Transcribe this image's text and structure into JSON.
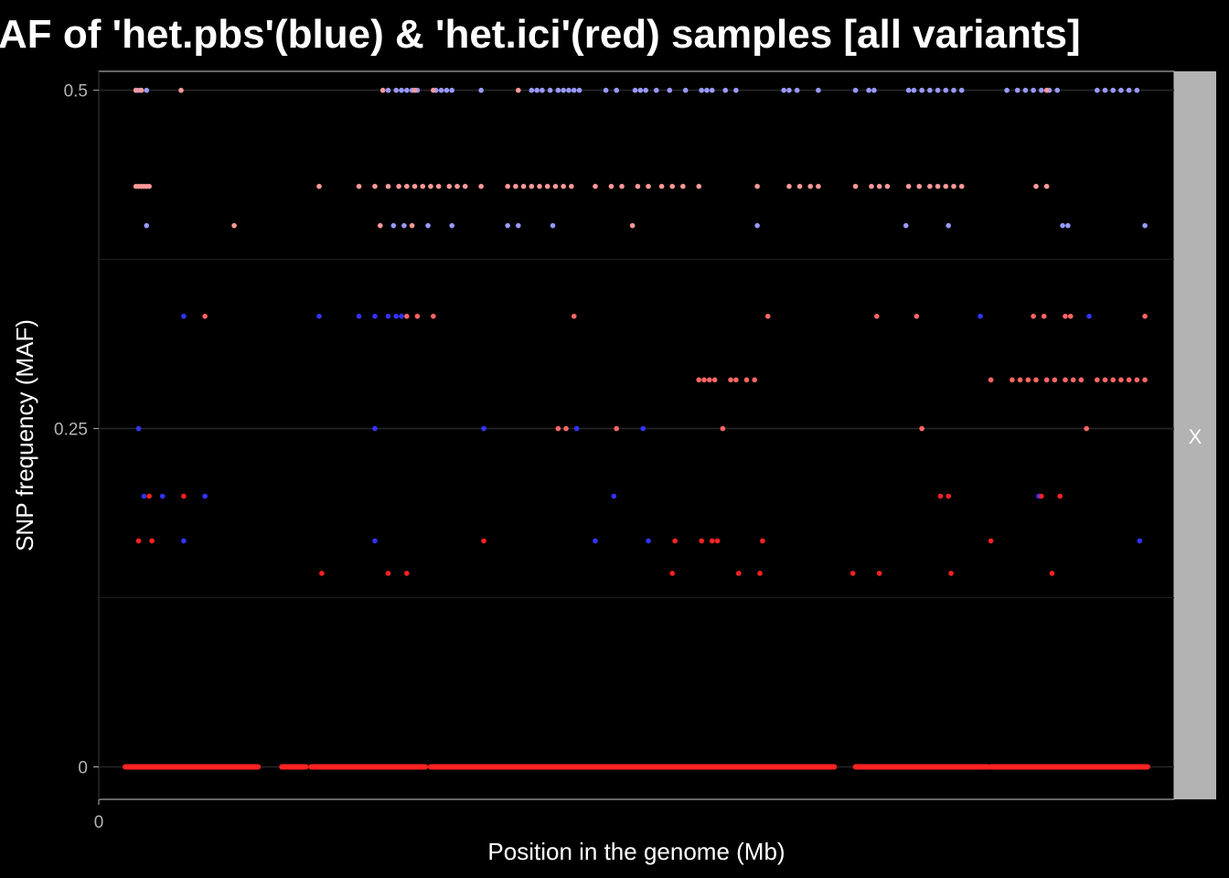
{
  "chart_data": {
    "type": "scatter",
    "title": "AF of 'het.pbs'(blue) & 'het.ici'(red) samples [all variants]",
    "xlabel": "Position in the genome (Mb)",
    "ylabel": "SNP frequency (MAF)",
    "facet_label": "X",
    "xlim": [
      0,
      40.5
    ],
    "ylim": [
      -0.024,
      0.514
    ],
    "x_ticks": [
      {
        "value": 0,
        "label": "0"
      }
    ],
    "y_ticks": [
      {
        "value": 0,
        "label": "0"
      },
      {
        "value": 0.25,
        "label": "0.25"
      },
      {
        "value": 0.5,
        "label": "0.5"
      }
    ],
    "y_minor_grid": [
      0.125,
      0.375
    ],
    "grid": true,
    "legend": "none",
    "series_colors": {
      "pbs_light": "#9999ff",
      "pbs_dark": "#3333ff",
      "ici_light": "#ff9999",
      "ici_mid": "#ff6666",
      "ici_dark": "#ff2222"
    },
    "series": [
      {
        "name": "het.pbs",
        "color": "#9999ff",
        "points": [
          {
            "x": 1.4,
            "y": 0.5
          },
          {
            "x": 1.5,
            "y": 0.5
          },
          {
            "x": 1.6,
            "y": 0.5
          },
          {
            "x": 1.8,
            "y": 0.5
          },
          {
            "x": 10.9,
            "y": 0.5
          },
          {
            "x": 11.2,
            "y": 0.5
          },
          {
            "x": 11.4,
            "y": 0.5
          },
          {
            "x": 11.6,
            "y": 0.5
          },
          {
            "x": 11.8,
            "y": 0.5
          },
          {
            "x": 12.0,
            "y": 0.5
          },
          {
            "x": 12.7,
            "y": 0.5
          },
          {
            "x": 12.9,
            "y": 0.5
          },
          {
            "x": 13.1,
            "y": 0.5
          },
          {
            "x": 13.3,
            "y": 0.5
          },
          {
            "x": 14.4,
            "y": 0.5
          },
          {
            "x": 16.3,
            "y": 0.5
          },
          {
            "x": 16.5,
            "y": 0.5
          },
          {
            "x": 16.7,
            "y": 0.5
          },
          {
            "x": 17.0,
            "y": 0.5
          },
          {
            "x": 17.3,
            "y": 0.5
          },
          {
            "x": 17.5,
            "y": 0.5
          },
          {
            "x": 17.7,
            "y": 0.5
          },
          {
            "x": 17.9,
            "y": 0.5
          },
          {
            "x": 18.1,
            "y": 0.5
          },
          {
            "x": 19.1,
            "y": 0.5
          },
          {
            "x": 19.5,
            "y": 0.5
          },
          {
            "x": 20.2,
            "y": 0.5
          },
          {
            "x": 20.4,
            "y": 0.5
          },
          {
            "x": 20.6,
            "y": 0.5
          },
          {
            "x": 21.0,
            "y": 0.5
          },
          {
            "x": 21.5,
            "y": 0.5
          },
          {
            "x": 22.1,
            "y": 0.5
          },
          {
            "x": 22.7,
            "y": 0.5
          },
          {
            "x": 22.9,
            "y": 0.5
          },
          {
            "x": 23.1,
            "y": 0.5
          },
          {
            "x": 23.6,
            "y": 0.5
          },
          {
            "x": 24.0,
            "y": 0.5
          },
          {
            "x": 25.8,
            "y": 0.5
          },
          {
            "x": 26.0,
            "y": 0.5
          },
          {
            "x": 26.3,
            "y": 0.5
          },
          {
            "x": 27.1,
            "y": 0.5
          },
          {
            "x": 28.5,
            "y": 0.5
          },
          {
            "x": 29.0,
            "y": 0.5
          },
          {
            "x": 29.2,
            "y": 0.5
          },
          {
            "x": 30.5,
            "y": 0.5
          },
          {
            "x": 30.7,
            "y": 0.5
          },
          {
            "x": 31.0,
            "y": 0.5
          },
          {
            "x": 31.3,
            "y": 0.5
          },
          {
            "x": 31.6,
            "y": 0.5
          },
          {
            "x": 31.9,
            "y": 0.5
          },
          {
            "x": 32.2,
            "y": 0.5
          },
          {
            "x": 32.5,
            "y": 0.5
          },
          {
            "x": 34.2,
            "y": 0.5
          },
          {
            "x": 34.6,
            "y": 0.5
          },
          {
            "x": 34.9,
            "y": 0.5
          },
          {
            "x": 35.2,
            "y": 0.5
          },
          {
            "x": 35.5,
            "y": 0.5
          },
          {
            "x": 35.8,
            "y": 0.5
          },
          {
            "x": 36.1,
            "y": 0.5
          },
          {
            "x": 37.6,
            "y": 0.5
          },
          {
            "x": 37.9,
            "y": 0.5
          },
          {
            "x": 38.2,
            "y": 0.5
          },
          {
            "x": 38.5,
            "y": 0.5
          },
          {
            "x": 38.8,
            "y": 0.5
          },
          {
            "x": 39.1,
            "y": 0.5
          },
          {
            "x": 1.8,
            "y": 0.4
          },
          {
            "x": 11.1,
            "y": 0.4
          },
          {
            "x": 11.5,
            "y": 0.4
          },
          {
            "x": 12.4,
            "y": 0.4
          },
          {
            "x": 13.3,
            "y": 0.4
          },
          {
            "x": 15.4,
            "y": 0.4
          },
          {
            "x": 15.8,
            "y": 0.4
          },
          {
            "x": 17.1,
            "y": 0.4
          },
          {
            "x": 24.8,
            "y": 0.4
          },
          {
            "x": 30.4,
            "y": 0.4
          },
          {
            "x": 32.0,
            "y": 0.4
          },
          {
            "x": 36.3,
            "y": 0.4
          },
          {
            "x": 36.5,
            "y": 0.4
          },
          {
            "x": 39.4,
            "y": 0.4
          }
        ]
      },
      {
        "name": "het.pbs",
        "color": "#3333ff",
        "points": [
          {
            "x": 3.2,
            "y": 0.333
          },
          {
            "x": 8.3,
            "y": 0.333
          },
          {
            "x": 9.8,
            "y": 0.333
          },
          {
            "x": 10.4,
            "y": 0.333
          },
          {
            "x": 10.9,
            "y": 0.333
          },
          {
            "x": 11.2,
            "y": 0.333
          },
          {
            "x": 11.4,
            "y": 0.333
          },
          {
            "x": 37.3,
            "y": 0.333
          },
          {
            "x": 33.2,
            "y": 0.333
          },
          {
            "x": 1.5,
            "y": 0.25
          },
          {
            "x": 10.4,
            "y": 0.25
          },
          {
            "x": 14.5,
            "y": 0.25
          },
          {
            "x": 18.0,
            "y": 0.25
          },
          {
            "x": 20.5,
            "y": 0.25
          },
          {
            "x": 1.7,
            "y": 0.2
          },
          {
            "x": 2.4,
            "y": 0.2
          },
          {
            "x": 19.4,
            "y": 0.2
          },
          {
            "x": 35.4,
            "y": 0.2
          },
          {
            "x": 3.2,
            "y": 0.167
          },
          {
            "x": 10.4,
            "y": 0.167
          },
          {
            "x": 18.7,
            "y": 0.167
          },
          {
            "x": 20.7,
            "y": 0.167
          },
          {
            "x": 39.2,
            "y": 0.167
          },
          {
            "x": 4.0,
            "y": 0.2
          }
        ]
      },
      {
        "name": "het.ici",
        "color": "#ff9999",
        "points": [
          {
            "x": 1.4,
            "y": 0.5
          },
          {
            "x": 1.6,
            "y": 0.5
          },
          {
            "x": 3.1,
            "y": 0.5
          },
          {
            "x": 10.7,
            "y": 0.5
          },
          {
            "x": 11.9,
            "y": 0.5
          },
          {
            "x": 12.6,
            "y": 0.5
          },
          {
            "x": 15.8,
            "y": 0.5
          },
          {
            "x": 35.7,
            "y": 0.5
          },
          {
            "x": 1.4,
            "y": 0.429
          },
          {
            "x": 1.5,
            "y": 0.429
          },
          {
            "x": 1.6,
            "y": 0.429
          },
          {
            "x": 1.7,
            "y": 0.429
          },
          {
            "x": 1.8,
            "y": 0.429
          },
          {
            "x": 1.9,
            "y": 0.429
          },
          {
            "x": 8.3,
            "y": 0.429
          },
          {
            "x": 9.8,
            "y": 0.429
          },
          {
            "x": 10.4,
            "y": 0.429
          },
          {
            "x": 10.9,
            "y": 0.429
          },
          {
            "x": 11.3,
            "y": 0.429
          },
          {
            "x": 11.6,
            "y": 0.429
          },
          {
            "x": 11.9,
            "y": 0.429
          },
          {
            "x": 12.2,
            "y": 0.429
          },
          {
            "x": 12.5,
            "y": 0.429
          },
          {
            "x": 12.8,
            "y": 0.429
          },
          {
            "x": 13.2,
            "y": 0.429
          },
          {
            "x": 13.5,
            "y": 0.429
          },
          {
            "x": 13.8,
            "y": 0.429
          },
          {
            "x": 14.4,
            "y": 0.429
          },
          {
            "x": 15.4,
            "y": 0.429
          },
          {
            "x": 15.7,
            "y": 0.429
          },
          {
            "x": 16.0,
            "y": 0.429
          },
          {
            "x": 16.3,
            "y": 0.429
          },
          {
            "x": 16.6,
            "y": 0.429
          },
          {
            "x": 16.9,
            "y": 0.429
          },
          {
            "x": 17.2,
            "y": 0.429
          },
          {
            "x": 17.5,
            "y": 0.429
          },
          {
            "x": 17.8,
            "y": 0.429
          },
          {
            "x": 18.7,
            "y": 0.429
          },
          {
            "x": 19.3,
            "y": 0.429
          },
          {
            "x": 19.7,
            "y": 0.429
          },
          {
            "x": 20.3,
            "y": 0.429
          },
          {
            "x": 20.7,
            "y": 0.429
          },
          {
            "x": 21.2,
            "y": 0.429
          },
          {
            "x": 21.6,
            "y": 0.429
          },
          {
            "x": 22.0,
            "y": 0.429
          },
          {
            "x": 22.6,
            "y": 0.429
          },
          {
            "x": 24.8,
            "y": 0.429
          },
          {
            "x": 26.0,
            "y": 0.429
          },
          {
            "x": 26.4,
            "y": 0.429
          },
          {
            "x": 26.8,
            "y": 0.429
          },
          {
            "x": 27.1,
            "y": 0.429
          },
          {
            "x": 28.5,
            "y": 0.429
          },
          {
            "x": 29.1,
            "y": 0.429
          },
          {
            "x": 29.4,
            "y": 0.429
          },
          {
            "x": 29.7,
            "y": 0.429
          },
          {
            "x": 30.5,
            "y": 0.429
          },
          {
            "x": 30.9,
            "y": 0.429
          },
          {
            "x": 31.3,
            "y": 0.429
          },
          {
            "x": 31.6,
            "y": 0.429
          },
          {
            "x": 31.9,
            "y": 0.429
          },
          {
            "x": 32.2,
            "y": 0.429
          },
          {
            "x": 32.5,
            "y": 0.429
          },
          {
            "x": 35.3,
            "y": 0.429
          },
          {
            "x": 35.7,
            "y": 0.429
          },
          {
            "x": 10.6,
            "y": 0.4
          },
          {
            "x": 11.8,
            "y": 0.4
          },
          {
            "x": 20.1,
            "y": 0.4
          },
          {
            "x": 5.1,
            "y": 0.4
          }
        ]
      },
      {
        "name": "het.ici",
        "color": "#ff6666",
        "points": [
          {
            "x": 4.0,
            "y": 0.333
          },
          {
            "x": 11.6,
            "y": 0.333
          },
          {
            "x": 12.0,
            "y": 0.333
          },
          {
            "x": 12.6,
            "y": 0.333
          },
          {
            "x": 17.9,
            "y": 0.333
          },
          {
            "x": 25.2,
            "y": 0.333
          },
          {
            "x": 29.3,
            "y": 0.333
          },
          {
            "x": 30.8,
            "y": 0.333
          },
          {
            "x": 35.2,
            "y": 0.333
          },
          {
            "x": 35.6,
            "y": 0.333
          },
          {
            "x": 36.4,
            "y": 0.333
          },
          {
            "x": 36.6,
            "y": 0.333
          },
          {
            "x": 39.4,
            "y": 0.333
          },
          {
            "x": 22.6,
            "y": 0.286
          },
          {
            "x": 22.8,
            "y": 0.286
          },
          {
            "x": 23.0,
            "y": 0.286
          },
          {
            "x": 23.2,
            "y": 0.286
          },
          {
            "x": 23.8,
            "y": 0.286
          },
          {
            "x": 24.0,
            "y": 0.286
          },
          {
            "x": 24.4,
            "y": 0.286
          },
          {
            "x": 24.7,
            "y": 0.286
          },
          {
            "x": 33.6,
            "y": 0.286
          },
          {
            "x": 34.4,
            "y": 0.286
          },
          {
            "x": 34.7,
            "y": 0.286
          },
          {
            "x": 35.0,
            "y": 0.286
          },
          {
            "x": 35.3,
            "y": 0.286
          },
          {
            "x": 35.7,
            "y": 0.286
          },
          {
            "x": 36.0,
            "y": 0.286
          },
          {
            "x": 36.4,
            "y": 0.286
          },
          {
            "x": 36.7,
            "y": 0.286
          },
          {
            "x": 37.0,
            "y": 0.286
          },
          {
            "x": 37.6,
            "y": 0.286
          },
          {
            "x": 37.9,
            "y": 0.286
          },
          {
            "x": 38.2,
            "y": 0.286
          },
          {
            "x": 38.5,
            "y": 0.286
          },
          {
            "x": 38.8,
            "y": 0.286
          },
          {
            "x": 39.1,
            "y": 0.286
          },
          {
            "x": 39.4,
            "y": 0.286
          },
          {
            "x": 17.3,
            "y": 0.25
          },
          {
            "x": 17.6,
            "y": 0.25
          },
          {
            "x": 19.5,
            "y": 0.25
          },
          {
            "x": 23.5,
            "y": 0.25
          },
          {
            "x": 31.0,
            "y": 0.25
          },
          {
            "x": 37.2,
            "y": 0.25
          }
        ]
      },
      {
        "name": "het.ici",
        "color": "#ff2222",
        "points": [
          {
            "x": 1.9,
            "y": 0.2
          },
          {
            "x": 3.2,
            "y": 0.2
          },
          {
            "x": 31.7,
            "y": 0.2
          },
          {
            "x": 32.0,
            "y": 0.2
          },
          {
            "x": 35.5,
            "y": 0.2
          },
          {
            "x": 36.2,
            "y": 0.2
          },
          {
            "x": 1.5,
            "y": 0.167
          },
          {
            "x": 2.0,
            "y": 0.167
          },
          {
            "x": 14.5,
            "y": 0.167
          },
          {
            "x": 21.7,
            "y": 0.167
          },
          {
            "x": 22.7,
            "y": 0.167
          },
          {
            "x": 23.1,
            "y": 0.167
          },
          {
            "x": 23.3,
            "y": 0.167
          },
          {
            "x": 25.0,
            "y": 0.167
          },
          {
            "x": 33.6,
            "y": 0.167
          },
          {
            "x": 8.4,
            "y": 0.143
          },
          {
            "x": 10.9,
            "y": 0.143
          },
          {
            "x": 11.6,
            "y": 0.143
          },
          {
            "x": 21.6,
            "y": 0.143
          },
          {
            "x": 24.1,
            "y": 0.143
          },
          {
            "x": 24.9,
            "y": 0.143
          },
          {
            "x": 28.4,
            "y": 0.143
          },
          {
            "x": 29.4,
            "y": 0.143
          },
          {
            "x": 32.1,
            "y": 0.143
          },
          {
            "x": 35.9,
            "y": 0.143
          }
        ]
      }
    ],
    "zero_line_segments": [
      [
        1.0,
        6.0
      ],
      [
        6.9,
        7.8
      ],
      [
        8.0,
        12.3
      ],
      [
        12.5,
        27.7
      ],
      [
        28.5,
        33.5
      ],
      [
        33.6,
        39.5
      ]
    ]
  }
}
